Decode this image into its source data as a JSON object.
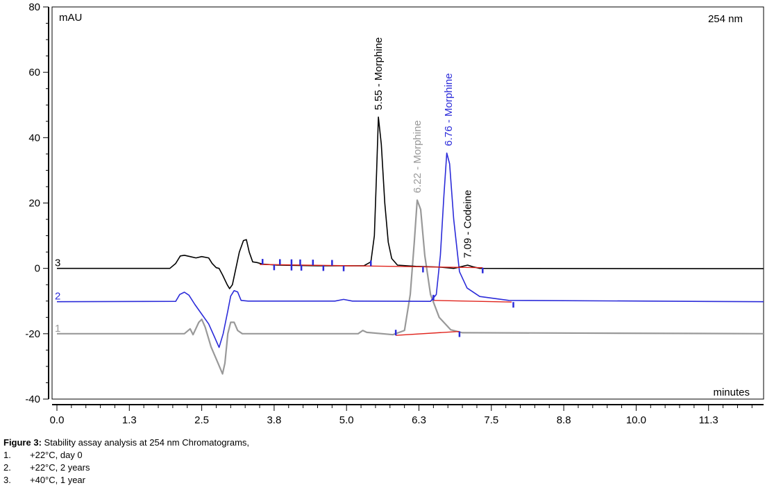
{
  "chart_data": {
    "type": "line",
    "title": "",
    "ylabel": "mAU",
    "xlabel": "minutes",
    "wavelength_label": "254 nm",
    "xlim": [
      0,
      12.2
    ],
    "ylim": [
      -40,
      80
    ],
    "x_ticks": [
      "0.0",
      "1.3",
      "2.5",
      "3.8",
      "5.0",
      "6.3",
      "7.5",
      "8.8",
      "10.0",
      "11.3"
    ],
    "x_tick_values": [
      0.0,
      1.25,
      2.5,
      3.75,
      5.0,
      6.25,
      7.5,
      8.75,
      10.0,
      11.25
    ],
    "y_ticks": [
      "-40",
      "-20",
      "0",
      "20",
      "40",
      "60",
      "80"
    ],
    "y_tick_values": [
      -40,
      -20,
      0,
      20,
      40,
      60,
      80
    ],
    "grid": false,
    "series": [
      {
        "name": "3",
        "color": "#000000",
        "points": [
          [
            0,
            0
          ],
          [
            1.95,
            0
          ],
          [
            2.05,
            1.5
          ],
          [
            2.13,
            3.8
          ],
          [
            2.2,
            4
          ],
          [
            2.3,
            3.6
          ],
          [
            2.4,
            3.2
          ],
          [
            2.5,
            3.6
          ],
          [
            2.62,
            3.2
          ],
          [
            2.68,
            1.5
          ],
          [
            2.75,
            0.2
          ],
          [
            2.8,
            0
          ],
          [
            2.86,
            -2
          ],
          [
            2.94,
            -5
          ],
          [
            2.98,
            -6.2
          ],
          [
            3.03,
            -5
          ],
          [
            3.09,
            0
          ],
          [
            3.15,
            5
          ],
          [
            3.22,
            8.5
          ],
          [
            3.27,
            8.8
          ],
          [
            3.32,
            5
          ],
          [
            3.38,
            2
          ],
          [
            3.45,
            1.8
          ],
          [
            3.55,
            1.3
          ],
          [
            3.8,
            1
          ],
          [
            4.5,
            0.8
          ],
          [
            5.3,
            0.8
          ],
          [
            5.42,
            2
          ],
          [
            5.48,
            10
          ],
          [
            5.52,
            30
          ],
          [
            5.55,
            46.3
          ],
          [
            5.6,
            38
          ],
          [
            5.66,
            20
          ],
          [
            5.72,
            8
          ],
          [
            5.78,
            3
          ],
          [
            5.88,
            1
          ],
          [
            6.2,
            0.6
          ],
          [
            6.6,
            0.4
          ],
          [
            6.85,
            0
          ],
          [
            6.95,
            0.4
          ],
          [
            7.09,
            1
          ],
          [
            7.18,
            0.5
          ],
          [
            7.3,
            0
          ],
          [
            12.2,
            -0.1
          ]
        ],
        "peaks": [
          {
            "rt": 5.55,
            "label": "5.55 - Morphine",
            "height": 46.3
          },
          {
            "rt": 7.09,
            "label": "7.09 - Codeine",
            "height": 1
          }
        ],
        "baseline_from": [
          3.5,
          1.2
        ],
        "baseline_to": [
          7.35,
          0.2
        ],
        "ticks_up": [
          3.55,
          3.85,
          4.05,
          4.2,
          4.42,
          4.75,
          5.42
        ],
        "ticks_down": [
          3.75,
          4.05,
          4.22,
          4.6,
          4.95,
          6.32,
          7.35
        ]
      },
      {
        "name": "2",
        "color": "#2b2bd9",
        "points": [
          [
            0,
            -10.2
          ],
          [
            2.05,
            -10.1
          ],
          [
            2.12,
            -8
          ],
          [
            2.2,
            -7.3
          ],
          [
            2.28,
            -8.2
          ],
          [
            2.38,
            -11
          ],
          [
            2.5,
            -14
          ],
          [
            2.62,
            -17
          ],
          [
            2.72,
            -21
          ],
          [
            2.8,
            -24.2
          ],
          [
            2.87,
            -20
          ],
          [
            2.95,
            -13
          ],
          [
            3.0,
            -8.5
          ],
          [
            3.06,
            -6.8
          ],
          [
            3.12,
            -7.2
          ],
          [
            3.18,
            -9.8
          ],
          [
            3.3,
            -10
          ],
          [
            4.8,
            -10
          ],
          [
            4.95,
            -9.5
          ],
          [
            5.1,
            -10
          ],
          [
            6.45,
            -10.1
          ],
          [
            6.55,
            -8
          ],
          [
            6.62,
            4
          ],
          [
            6.68,
            22
          ],
          [
            6.73,
            35.3
          ],
          [
            6.78,
            32
          ],
          [
            6.85,
            15
          ],
          [
            6.95,
            -1
          ],
          [
            7.08,
            -6
          ],
          [
            7.3,
            -8.6
          ],
          [
            7.8,
            -9.8
          ],
          [
            12.2,
            -10.2
          ]
        ],
        "peaks": [
          {
            "rt": 6.76,
            "label": "6.76 - Morphine",
            "height": 35.3
          }
        ],
        "baseline_from": [
          6.5,
          -9.8
        ],
        "baseline_to": [
          7.85,
          -10.3
        ],
        "ticks_up": [
          6.5
        ],
        "ticks_down": [
          7.88
        ]
      },
      {
        "name": "1",
        "color": "#999999",
        "points": [
          [
            0,
            -20
          ],
          [
            2.2,
            -20
          ],
          [
            2.3,
            -18.5
          ],
          [
            2.35,
            -20.3
          ],
          [
            2.45,
            -16.5
          ],
          [
            2.5,
            -15.6
          ],
          [
            2.56,
            -18
          ],
          [
            2.66,
            -24
          ],
          [
            2.77,
            -28.5
          ],
          [
            2.86,
            -32.3
          ],
          [
            2.9,
            -29
          ],
          [
            2.95,
            -20
          ],
          [
            3.0,
            -16.5
          ],
          [
            3.06,
            -16.5
          ],
          [
            3.12,
            -19
          ],
          [
            3.2,
            -20
          ],
          [
            5.2,
            -20
          ],
          [
            5.28,
            -19
          ],
          [
            5.35,
            -19.6
          ],
          [
            5.8,
            -20.3
          ],
          [
            6.0,
            -19
          ],
          [
            6.1,
            -8
          ],
          [
            6.17,
            8
          ],
          [
            6.22,
            20.9
          ],
          [
            6.28,
            18
          ],
          [
            6.35,
            4
          ],
          [
            6.45,
            -8
          ],
          [
            6.6,
            -15
          ],
          [
            6.8,
            -18.8
          ],
          [
            7.0,
            -19.7
          ],
          [
            12.2,
            -20
          ]
        ],
        "peaks": [
          {
            "rt": 6.22,
            "label": "6.22 - Morphine",
            "height": 20.9
          }
        ],
        "baseline_from": [
          5.85,
          -20.5
        ],
        "baseline_to": [
          6.95,
          -19.3
        ],
        "ticks_up": [
          5.85
        ],
        "ticks_down": [
          6.95
        ]
      }
    ]
  },
  "caption": {
    "label": "Figure 3:",
    "text": " Stability assay analysis at 254 nm Chromatograms,",
    "items": [
      {
        "num": "1.",
        "text": "+22°C, day 0"
      },
      {
        "num": "2.",
        "text": "+22°C, 2 years"
      },
      {
        "num": "3.",
        "text": "+40°C, 1 year"
      }
    ]
  }
}
